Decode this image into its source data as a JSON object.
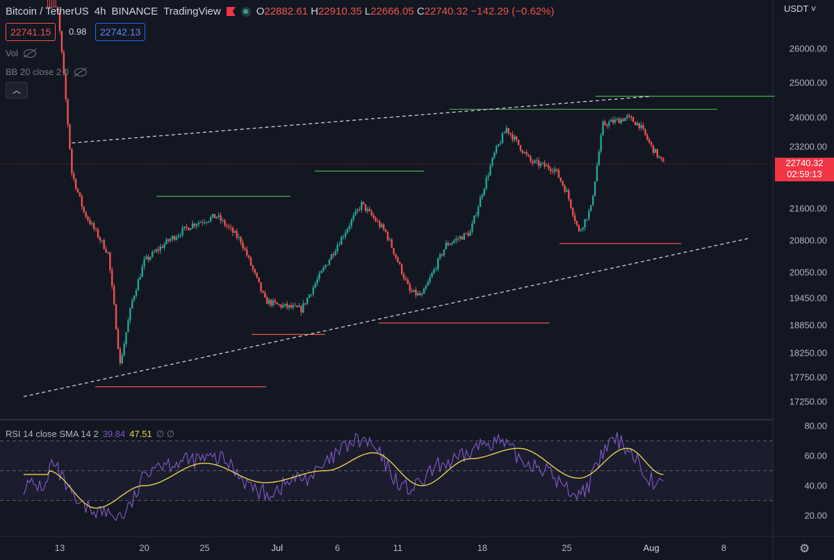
{
  "header": {
    "title": "Bitcoin / TetherUS",
    "interval": "4h",
    "exchange": "BINANCE",
    "source": "TradingView",
    "ohlc": {
      "o_label": "O",
      "o": "22882.61",
      "h_label": "H",
      "h": "22910.35",
      "l_label": "L",
      "l": "22666.05",
      "c_label": "C",
      "c": "22740.32",
      "change": "−142.29 (−0.62%)"
    },
    "sell_price": "22741.15",
    "spread": "0.98",
    "buy_price": "22742.13"
  },
  "studies": {
    "vol": "Vol",
    "bb": "BB 20 close 2 0"
  },
  "rsi": {
    "label": "RSI 14 close SMA 14 2",
    "rsi_value": "39.84",
    "sma_value": "47.51",
    "icons": "∅ ∅"
  },
  "axis": {
    "currency": "USDT",
    "price_ticks": [
      "26000.00",
      "25000.00",
      "24000.00",
      "23200.00",
      "21600.00",
      "20800.00",
      "20050.00",
      "19450.00",
      "18850.00",
      "18250.00",
      "17750.00",
      "17250.00"
    ],
    "rsi_ticks": [
      "80.00",
      "60.00",
      "40.00",
      "20.00"
    ],
    "x_ticks": [
      "13",
      "20",
      "25",
      "Jul",
      "6",
      "11",
      "18",
      "25",
      "Aug",
      "8"
    ],
    "current_price": "22740.32",
    "countdown": "02:59:13"
  },
  "colors": {
    "up": "#26a69a",
    "down": "#ef5350",
    "rsi": "#7e57c2",
    "sma": "#e8d44d",
    "support": "#ef5350",
    "resistance": "#4caf50"
  },
  "chart_data": {
    "type": "candlestick",
    "title": "Bitcoin / TetherUS",
    "subtitle": "4h · BINANCE",
    "x_ticks": [
      "13",
      "20",
      "25",
      "Jul",
      "6",
      "11",
      "18",
      "25",
      "Aug",
      "8"
    ],
    "ylim": [
      17000,
      27000
    ],
    "price_path": [
      {
        "x": "Jun 12",
        "close": 30000
      },
      {
        "x": "Jun 13",
        "close": 26500
      },
      {
        "x": "Jun 14",
        "close": 22500
      },
      {
        "x": "Jun 15",
        "close": 21500
      },
      {
        "x": "Jun 16",
        "close": 21000
      },
      {
        "x": "Jun 17",
        "close": 20500
      },
      {
        "x": "Jun 18",
        "close": 18000
      },
      {
        "x": "Jun 19",
        "close": 19400
      },
      {
        "x": "Jun 20",
        "close": 20300
      },
      {
        "x": "Jun 22",
        "close": 20800
      },
      {
        "x": "Jun 24",
        "close": 21200
      },
      {
        "x": "Jun 26",
        "close": 21400
      },
      {
        "x": "Jun 28",
        "close": 20800
      },
      {
        "x": "Jun 30",
        "close": 19400
      },
      {
        "x": "Jul 1",
        "close": 19300
      },
      {
        "x": "Jul 3",
        "close": 19200
      },
      {
        "x": "Jul 5",
        "close": 20200
      },
      {
        "x": "Jul 7",
        "close": 21200
      },
      {
        "x": "Jul 8",
        "close": 21700
      },
      {
        "x": "Jul 10",
        "close": 21000
      },
      {
        "x": "Jul 12",
        "close": 19600
      },
      {
        "x": "Jul 13",
        "close": 19500
      },
      {
        "x": "Jul 15",
        "close": 20700
      },
      {
        "x": "Jul 17",
        "close": 21000
      },
      {
        "x": "Jul 19",
        "close": 23000
      },
      {
        "x": "Jul 20",
        "close": 23700
      },
      {
        "x": "Jul 22",
        "close": 22800
      },
      {
        "x": "Jul 24",
        "close": 22600
      },
      {
        "x": "Jul 25",
        "close": 22000
      },
      {
        "x": "Jul 26",
        "close": 21000
      },
      {
        "x": "Jul 27",
        "close": 21600
      },
      {
        "x": "Jul 28",
        "close": 23800
      },
      {
        "x": "Jul 30",
        "close": 24000
      },
      {
        "x": "Jul 31",
        "close": 23800
      },
      {
        "x": "Aug 1",
        "close": 23200
      },
      {
        "x": "Aug 2",
        "close": 22740
      }
    ],
    "support_levels": [
      17550,
      18650,
      18900,
      20730
    ],
    "resistance_levels": [
      21900,
      22550,
      24230,
      24600
    ],
    "trendlines": [
      {
        "from": {
          "x": "Jun 10",
          "y": 17350
        },
        "to": {
          "x": "Aug 9",
          "y": 20850
        },
        "style": "dashed"
      },
      {
        "from": {
          "x": "Jun 14",
          "y": 23300
        },
        "to": {
          "x": "Aug 1",
          "y": 24600
        },
        "style": "dashed"
      }
    ],
    "rsi": {
      "ylim": [
        10,
        85
      ],
      "bands": [
        30,
        50,
        70
      ],
      "series": [
        {
          "name": "RSI",
          "points": [
            {
              "x": "Jun 12",
              "y": 55
            },
            {
              "x": "Jun 15",
              "y": 25
            },
            {
              "x": "Jun 18",
              "y": 20
            },
            {
              "x": "Jun 21",
              "y": 55
            },
            {
              "x": "Jun 26",
              "y": 58
            },
            {
              "x": "Jun 30",
              "y": 35
            },
            {
              "x": "Jul 3",
              "y": 45
            },
            {
              "x": "Jul 8",
              "y": 70
            },
            {
              "x": "Jul 12",
              "y": 38
            },
            {
              "x": "Jul 15",
              "y": 55
            },
            {
              "x": "Jul 19",
              "y": 70
            },
            {
              "x": "Jul 22",
              "y": 55
            },
            {
              "x": "Jul 26",
              "y": 35
            },
            {
              "x": "Jul 29",
              "y": 70
            },
            {
              "x": "Aug 2",
              "y": 40
            }
          ]
        },
        {
          "name": "SMA",
          "points": [
            {
              "x": "Jun 12",
              "y": 50
            },
            {
              "x": "Jun 16",
              "y": 25
            },
            {
              "x": "Jun 20",
              "y": 40
            },
            {
              "x": "Jun 25",
              "y": 55
            },
            {
              "x": "Jun 30",
              "y": 42
            },
            {
              "x": "Jul 5",
              "y": 50
            },
            {
              "x": "Jul 9",
              "y": 62
            },
            {
              "x": "Jul 13",
              "y": 40
            },
            {
              "x": "Jul 17",
              "y": 58
            },
            {
              "x": "Jul 21",
              "y": 65
            },
            {
              "x": "Jul 26",
              "y": 45
            },
            {
              "x": "Jul 30",
              "y": 65
            },
            {
              "x": "Aug 2",
              "y": 47.5
            }
          ]
        }
      ]
    }
  }
}
